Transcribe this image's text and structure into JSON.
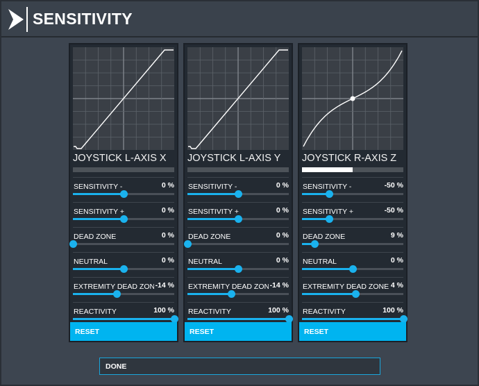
{
  "app": {
    "title": "SENSITIVITY"
  },
  "colors": {
    "accent": "#00b4f0",
    "panel": "#232a32",
    "background": "#3d4550"
  },
  "panels": [
    {
      "axis_name": "JOYSTICK L-AXIS X",
      "activity_level": 0,
      "curve": "linear",
      "settings": [
        {
          "label": "SENSITIVITY -",
          "value": "0 %",
          "level": 0.5
        },
        {
          "label": "SENSITIVITY +",
          "value": "0 %",
          "level": 0.5
        },
        {
          "label": "DEAD ZONE",
          "value": "0 %",
          "level": 0
        },
        {
          "label": "NEUTRAL",
          "value": "0 %",
          "level": 0.5
        },
        {
          "label": "EXTREMITY DEAD ZONE",
          "value": "-14 %",
          "level": 0.43
        },
        {
          "label": "REACTIVITY",
          "value": "100 %",
          "level": 1
        }
      ],
      "reset_label": "RESET"
    },
    {
      "axis_name": "JOYSTICK L-AXIS Y",
      "activity_level": 0,
      "curve": "linear",
      "settings": [
        {
          "label": "SENSITIVITY -",
          "value": "0 %",
          "level": 0.5
        },
        {
          "label": "SENSITIVITY +",
          "value": "0 %",
          "level": 0.5
        },
        {
          "label": "DEAD ZONE",
          "value": "0 %",
          "level": 0
        },
        {
          "label": "NEUTRAL",
          "value": "0 %",
          "level": 0.5
        },
        {
          "label": "EXTREMITY DEAD ZONE",
          "value": "-14 %",
          "level": 0.43
        },
        {
          "label": "REACTIVITY",
          "value": "100 %",
          "level": 1
        }
      ],
      "reset_label": "RESET"
    },
    {
      "axis_name": "JOYSTICK R-AXIS Z",
      "activity_level": 0.5,
      "curve": "cubic",
      "settings": [
        {
          "label": "SENSITIVITY -",
          "value": "-50 %",
          "level": 0.27
        },
        {
          "label": "SENSITIVITY +",
          "value": "-50 %",
          "level": 0.27
        },
        {
          "label": "DEAD ZONE",
          "value": "9 %",
          "level": 0.12
        },
        {
          "label": "NEUTRAL",
          "value": "0 %",
          "level": 0.5
        },
        {
          "label": "EXTREMITY DEAD ZONE",
          "value": "4 %",
          "level": 0.53
        },
        {
          "label": "REACTIVITY",
          "value": "100 %",
          "level": 1
        }
      ],
      "reset_label": "RESET"
    }
  ],
  "done_label": "DONE"
}
